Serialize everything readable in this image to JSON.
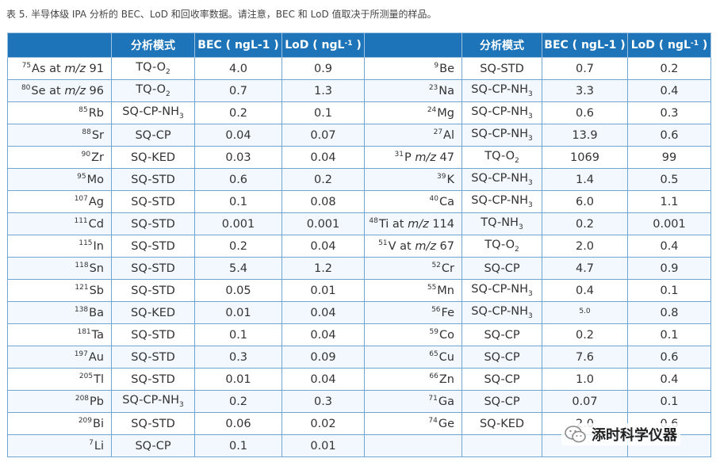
{
  "caption": "表 5. 半导体级 IPA 分析的 BEC、LoD 和回收率数据。请注意，BEC 和 LoD 值取决于所测量的样品。",
  "header": {
    "element": "",
    "mode": "分析模式",
    "bec": "BEC ( ngL-1 )",
    "lod_prefix": "LoD ( ngL",
    "lod_sup": "-1",
    "lod_suffix": " )"
  },
  "left_rows": [
    {
      "iso": "75",
      "el": "As at ",
      "mz": "m/z",
      "n": " 91",
      "mode": "TQ-O",
      "modesub": "2",
      "bec": "4.0",
      "lod": "0.9"
    },
    {
      "iso": "80",
      "el": "Se at ",
      "mz": "m/z",
      "n": " 96",
      "mode": "TQ-O",
      "modesub": "2",
      "bec": "0.7",
      "lod": "1.3"
    },
    {
      "iso": "85",
      "el": "Rb",
      "mz": "",
      "n": "",
      "mode": "SQ-CP-NH",
      "modesub": "3",
      "bec": "0.2",
      "lod": "0.1"
    },
    {
      "iso": "88",
      "el": "Sr",
      "mz": "",
      "n": "",
      "mode": "SQ-CP",
      "modesub": "",
      "bec": "0.04",
      "lod": "0.07"
    },
    {
      "iso": "90",
      "el": "Zr",
      "mz": "",
      "n": "",
      "mode": "SQ-KED",
      "modesub": "",
      "bec": "0.03",
      "lod": "0.04"
    },
    {
      "iso": "95",
      "el": "Mo",
      "mz": "",
      "n": "",
      "mode": "SQ-STD",
      "modesub": "",
      "bec": "0.6",
      "lod": "0.2"
    },
    {
      "iso": "107",
      "el": "Ag",
      "mz": "",
      "n": "",
      "mode": "SQ-STD",
      "modesub": "",
      "bec": "0.1",
      "lod": "0.08"
    },
    {
      "iso": "111",
      "el": "Cd",
      "mz": "",
      "n": "",
      "mode": "SQ-STD",
      "modesub": "",
      "bec": "0.001",
      "lod": "0.001"
    },
    {
      "iso": "115",
      "el": "In",
      "mz": "",
      "n": "",
      "mode": "SQ-STD",
      "modesub": "",
      "bec": "0.2",
      "lod": "0.04"
    },
    {
      "iso": "118",
      "el": "Sn",
      "mz": "",
      "n": "",
      "mode": "SQ-STD",
      "modesub": "",
      "bec": "5.4",
      "lod": "1.2"
    },
    {
      "iso": "121",
      "el": "Sb",
      "mz": "",
      "n": "",
      "mode": "SQ-STD",
      "modesub": "",
      "bec": "0.05",
      "lod": "0.01"
    },
    {
      "iso": "138",
      "el": "Ba",
      "mz": "",
      "n": "",
      "mode": "SQ-KED",
      "modesub": "",
      "bec": "0.01",
      "lod": "0.04"
    },
    {
      "iso": "181",
      "el": "Ta",
      "mz": "",
      "n": "",
      "mode": "SQ-STD",
      "modesub": "",
      "bec": "0.1",
      "lod": "0.04"
    },
    {
      "iso": "197",
      "el": "Au",
      "mz": "",
      "n": "",
      "mode": "SQ-STD",
      "modesub": "",
      "bec": "0.3",
      "lod": "0.09"
    },
    {
      "iso": "205",
      "el": "Tl",
      "mz": "",
      "n": "",
      "mode": "SQ-STD",
      "modesub": "",
      "bec": "0.01",
      "lod": "0.04"
    },
    {
      "iso": "208",
      "el": "Pb",
      "mz": "",
      "n": "",
      "mode": "SQ-CP-NH",
      "modesub": "3",
      "bec": "0.2",
      "lod": "0.3"
    },
    {
      "iso": "209",
      "el": "Bi",
      "mz": "",
      "n": "",
      "mode": "SQ-STD",
      "modesub": "",
      "bec": "0.06",
      "lod": "0.02"
    },
    {
      "iso": "7",
      "el": "Li",
      "mz": "",
      "n": "",
      "mode": "SQ-CP",
      "modesub": "",
      "bec": "0.1",
      "lod": "0.01"
    }
  ],
  "right_rows": [
    {
      "iso": "9",
      "el": "Be",
      "mz": "",
      "n": "",
      "mode": "SQ-STD",
      "modesub": "",
      "bec": "0.7",
      "lod": "0.2"
    },
    {
      "iso": "23",
      "el": "Na",
      "mz": "",
      "n": "",
      "mode": "SQ-CP-NH",
      "modesub": "3",
      "bec": "3.3",
      "lod": "0.4"
    },
    {
      "iso": "24",
      "el": "Mg",
      "mz": "",
      "n": "",
      "mode": "SQ-CP-NH",
      "modesub": "3",
      "bec": "0.6",
      "lod": "0.3"
    },
    {
      "iso": "27",
      "el": "Al",
      "mz": "",
      "n": "",
      "mode": "SQ-CP-NH",
      "modesub": "3",
      "bec": "13.9",
      "lod": "0.6"
    },
    {
      "iso": "31",
      "el": "P ",
      "mz": "m/z",
      "n": " 47",
      "mode": "TQ-O",
      "modesub": "2",
      "bec": "1069",
      "lod": "99"
    },
    {
      "iso": "39",
      "el": "K",
      "mz": "",
      "n": "",
      "mode": "SQ-CP-NH",
      "modesub": "3",
      "bec": "1.4",
      "lod": "0.5"
    },
    {
      "iso": "40",
      "el": "Ca",
      "mz": "",
      "n": "",
      "mode": "SQ-CP-NH",
      "modesub": "3",
      "bec": "6.0",
      "lod": "1.1"
    },
    {
      "iso": "48",
      "el": "Ti at ",
      "mz": "m/z",
      "n": " 114",
      "mode": "TQ-NH",
      "modesub": "3",
      "bec": "0.2",
      "lod": "0.001"
    },
    {
      "iso": "51",
      "el": "V at ",
      "mz": "m/z",
      "n": " 67",
      "mode": "TQ-O",
      "modesub": "2",
      "bec": "2.0",
      "lod": "0.4"
    },
    {
      "iso": "52",
      "el": "Cr",
      "mz": "",
      "n": "",
      "mode": "SQ-CP",
      "modesub": "",
      "bec": "4.7",
      "lod": "0.9"
    },
    {
      "iso": "55",
      "el": "Mn",
      "mz": "",
      "n": "",
      "mode": "SQ-CP-NH",
      "modesub": "3",
      "bec": "0.4",
      "lod": "0.1"
    },
    {
      "iso": "56",
      "el": "Fe",
      "mz": "",
      "n": "",
      "mode": "SQ-CP-NH",
      "modesub": "3",
      "bec": "5.0",
      "lod": "0.8",
      "bec_tiny": true
    },
    {
      "iso": "59",
      "el": "Co",
      "mz": "",
      "n": "",
      "mode": "SQ-CP",
      "modesub": "",
      "bec": "0.2",
      "lod": "0.1"
    },
    {
      "iso": "65",
      "el": "Cu",
      "mz": "",
      "n": "",
      "mode": "SQ-CP",
      "modesub": "",
      "bec": "7.6",
      "lod": "0.6"
    },
    {
      "iso": "66",
      "el": "Zn",
      "mz": "",
      "n": "",
      "mode": "SQ-CP",
      "modesub": "",
      "bec": "1.0",
      "lod": "0.4"
    },
    {
      "iso": "71",
      "el": "Ga",
      "mz": "",
      "n": "",
      "mode": "SQ-CP",
      "modesub": "",
      "bec": "0.07",
      "lod": "0.1"
    },
    {
      "iso": "74",
      "el": "Ge",
      "mz": "",
      "n": "",
      "mode": "SQ-KED",
      "modesub": "",
      "bec": "2.0",
      "lod": "0.6"
    },
    {
      "iso": "",
      "el": "",
      "mz": "",
      "n": "",
      "mode": "",
      "modesub": "",
      "bec": "",
      "lod": ""
    }
  ],
  "watermark": {
    "text": "添时科学仪器",
    "icon": "wechat-icon",
    "icon_color": "#8a8a8a"
  },
  "colors": {
    "header_bg": "#1d74b8",
    "border": "#6fa5d3",
    "row_alt": "#f2f8fd",
    "text": "#333333"
  }
}
